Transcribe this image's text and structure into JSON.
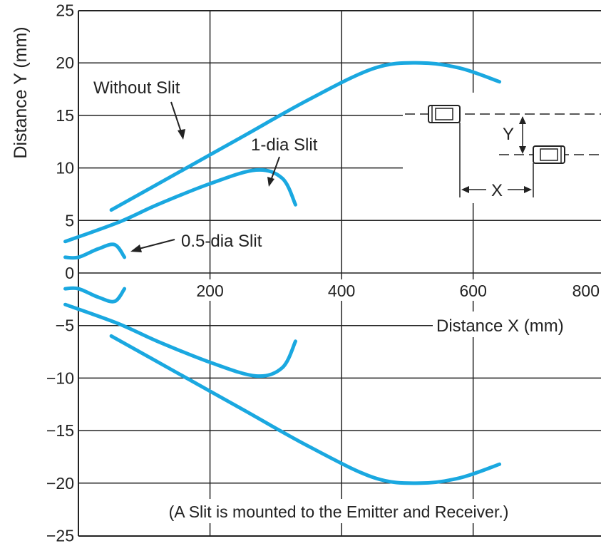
{
  "chart_data": {
    "type": "line",
    "xlabel": "Distance X (mm)",
    "ylabel": "Distance Y (mm)",
    "xlim": [
      -20,
      830
    ],
    "ylim": [
      -25,
      25
    ],
    "x_ticks": [
      200,
      400,
      600,
      800
    ],
    "y_ticks": [
      25,
      20,
      15,
      10,
      5,
      0,
      -5,
      -10,
      -15,
      -20,
      -25
    ],
    "y_tick_labels": [
      "25",
      "20",
      "15",
      "10",
      "5",
      "0",
      "−5",
      "−10",
      "−15",
      "−20",
      "−25"
    ],
    "grid": true,
    "series_color": "#1aa8e0",
    "series": [
      {
        "name": "Without Slit",
        "upper": [
          [
            50,
            6
          ],
          [
            150,
            9.5
          ],
          [
            250,
            13
          ],
          [
            350,
            16.5
          ],
          [
            450,
            19.5
          ],
          [
            520,
            20
          ],
          [
            580,
            19.5
          ],
          [
            640,
            18.2
          ]
        ],
        "lower": [
          [
            50,
            -6
          ],
          [
            150,
            -9.5
          ],
          [
            250,
            -13
          ],
          [
            350,
            -16.5
          ],
          [
            450,
            -19.5
          ],
          [
            520,
            -20
          ],
          [
            580,
            -19.5
          ],
          [
            640,
            -18.2
          ]
        ]
      },
      {
        "name": "1-dia Slit",
        "upper": [
          [
            -20,
            3
          ],
          [
            60,
            4.8
          ],
          [
            120,
            6.5
          ],
          [
            200,
            8.5
          ],
          [
            270,
            9.8
          ],
          [
            310,
            9
          ],
          [
            330,
            6.5
          ]
        ],
        "lower": [
          [
            -20,
            -3
          ],
          [
            60,
            -4.8
          ],
          [
            120,
            -6.5
          ],
          [
            200,
            -8.5
          ],
          [
            270,
            -9.8
          ],
          [
            310,
            -9
          ],
          [
            330,
            -6.5
          ]
        ]
      },
      {
        "name": "0.5-dia Slit",
        "upper": [
          [
            -20,
            1.5
          ],
          [
            0,
            1.5
          ],
          [
            30,
            2.3
          ],
          [
            55,
            2.7
          ],
          [
            70,
            1.5
          ]
        ],
        "lower": [
          [
            -20,
            -1.5
          ],
          [
            0,
            -1.5
          ],
          [
            30,
            -2.3
          ],
          [
            55,
            -2.7
          ],
          [
            70,
            -1.5
          ]
        ]
      }
    ],
    "annotations": {
      "without_slit": "Without Slit",
      "one_dia_slit": "1-dia Slit",
      "half_dia_slit": "0.5-dia Slit",
      "note": "(A Slit is mounted to the Emitter and Receiver.)",
      "inset_x_label": "X",
      "inset_y_label": "Y"
    }
  }
}
